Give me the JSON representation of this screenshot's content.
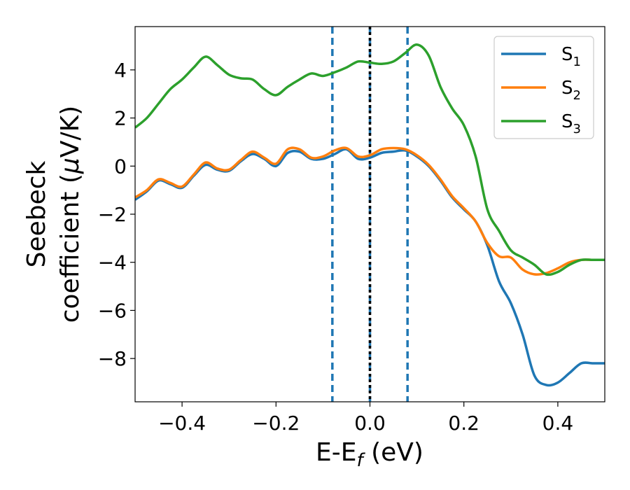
{
  "chart_data": {
    "type": "line",
    "xlabel": {
      "main": "E-E",
      "sub": "f",
      "unit": " (eV)"
    },
    "ylabel": {
      "line1": "Seebeck",
      "line2_prefix": "coefficient  (",
      "line2_mu": "μ",
      "line2_suffix": "V/K)"
    },
    "xlim": [
      -0.5,
      0.5
    ],
    "ylim": [
      -9.8,
      5.8
    ],
    "xticks": [
      -0.4,
      -0.2,
      0.0,
      0.2,
      0.4
    ],
    "xtick_labels": [
      "−0.4",
      "−0.2",
      "0.0",
      "0.2",
      "0.4"
    ],
    "yticks": [
      -8,
      -6,
      -4,
      -2,
      0,
      2,
      4
    ],
    "ytick_labels": [
      "−8",
      "−6",
      "−4",
      "−2",
      "0",
      "2",
      "4"
    ],
    "grid": false,
    "legend_position": "top-right",
    "vlines": [
      {
        "x": -0.08,
        "style": "dashed",
        "color": "#1f77b4"
      },
      {
        "x": 0.0,
        "style": "dashed",
        "color": "#1f77b4"
      },
      {
        "x": 0.0,
        "style": "dotted",
        "color": "#000000"
      },
      {
        "x": 0.08,
        "style": "dashed",
        "color": "#1f77b4"
      }
    ],
    "x": [
      -0.5,
      -0.475,
      -0.45,
      -0.425,
      -0.4,
      -0.375,
      -0.35,
      -0.325,
      -0.3,
      -0.275,
      -0.25,
      -0.225,
      -0.2,
      -0.175,
      -0.15,
      -0.125,
      -0.1,
      -0.075,
      -0.05,
      -0.025,
      0.0,
      0.025,
      0.05,
      0.075,
      0.1,
      0.125,
      0.15,
      0.175,
      0.2,
      0.225,
      0.25,
      0.275,
      0.3,
      0.325,
      0.35,
      0.375,
      0.4,
      0.425,
      0.45,
      0.475,
      0.5
    ],
    "series": [
      {
        "name": "S",
        "sub": "1",
        "color": "#1f77b4",
        "values": [
          -1.4,
          -1.05,
          -0.6,
          -0.75,
          -0.9,
          -0.4,
          0.05,
          -0.15,
          -0.2,
          0.2,
          0.5,
          0.3,
          0.0,
          0.55,
          0.6,
          0.3,
          0.3,
          0.5,
          0.7,
          0.3,
          0.35,
          0.55,
          0.6,
          0.65,
          0.4,
          0.0,
          -0.6,
          -1.3,
          -1.8,
          -2.3,
          -3.3,
          -4.8,
          -5.7,
          -7.0,
          -8.7,
          -9.1,
          -9.0,
          -8.6,
          -8.2,
          -8.2,
          -8.2
        ]
      },
      {
        "name": "S",
        "sub": "2",
        "color": "#ff7f0e",
        "values": [
          -1.3,
          -1.0,
          -0.55,
          -0.7,
          -0.85,
          -0.35,
          0.15,
          -0.1,
          -0.15,
          0.25,
          0.6,
          0.35,
          0.1,
          0.7,
          0.7,
          0.35,
          0.4,
          0.65,
          0.75,
          0.4,
          0.45,
          0.7,
          0.75,
          0.7,
          0.45,
          0.05,
          -0.55,
          -1.25,
          -1.75,
          -2.3,
          -3.2,
          -3.75,
          -3.8,
          -4.3,
          -4.5,
          -4.45,
          -4.25,
          -4.0,
          -3.9,
          -3.9,
          -3.9
        ]
      },
      {
        "name": "S",
        "sub": "3",
        "color": "#2ca02c",
        "values": [
          1.6,
          2.0,
          2.6,
          3.2,
          3.6,
          4.1,
          4.55,
          4.2,
          3.8,
          3.65,
          3.6,
          3.2,
          2.95,
          3.3,
          3.6,
          3.85,
          3.75,
          3.9,
          4.1,
          4.35,
          4.3,
          4.25,
          4.35,
          4.7,
          5.05,
          4.6,
          3.3,
          2.4,
          1.7,
          0.4,
          -1.8,
          -2.7,
          -3.5,
          -3.8,
          -4.1,
          -4.5,
          -4.4,
          -4.1,
          -3.9,
          -3.9,
          -3.9
        ]
      }
    ]
  }
}
